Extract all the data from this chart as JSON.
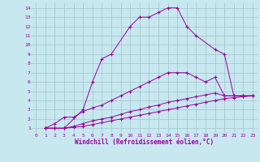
{
  "background_color": "#c8e8f0",
  "grid_color": "#a8c8d0",
  "line_color": "#990099",
  "marker": "+",
  "xlabel": "Windchill (Refroidissement éolien,°C)",
  "xlim": [
    -0.5,
    23.5
  ],
  "ylim": [
    0.5,
    14.5
  ],
  "xticks": [
    0,
    1,
    2,
    3,
    4,
    5,
    6,
    7,
    8,
    9,
    10,
    11,
    12,
    13,
    14,
    15,
    16,
    17,
    18,
    19,
    20,
    21,
    22,
    23
  ],
  "yticks": [
    1,
    2,
    3,
    4,
    5,
    6,
    7,
    8,
    9,
    10,
    11,
    12,
    13,
    14
  ],
  "line1_x": [
    1,
    2,
    3,
    5,
    6,
    7,
    8,
    10,
    11,
    12,
    13,
    14,
    15,
    16,
    17,
    19,
    20,
    21,
    22,
    23
  ],
  "line1_y": [
    1,
    1,
    1,
    3,
    6,
    8.5,
    9,
    12,
    13,
    13,
    13.5,
    14,
    14,
    12,
    11,
    9.5,
    9,
    4.5,
    4.5,
    4.5
  ],
  "line2_x": [
    1,
    2,
    3,
    4,
    5,
    6,
    7,
    8,
    9,
    10,
    11,
    12,
    13,
    14,
    15,
    16,
    17,
    18,
    19,
    20,
    21,
    22,
    23
  ],
  "line2_y": [
    1,
    1.5,
    2.2,
    2.2,
    2.8,
    3.2,
    3.5,
    4.0,
    4.5,
    5.0,
    5.5,
    6.0,
    6.5,
    7.0,
    7.0,
    7.0,
    6.5,
    6.0,
    6.5,
    4.5,
    4.5,
    4.5,
    4.5
  ],
  "line3_x": [
    1,
    2,
    3,
    4,
    5,
    6,
    7,
    8,
    9,
    10,
    11,
    12,
    13,
    14,
    15,
    16,
    17,
    18,
    19,
    20,
    21,
    22,
    23
  ],
  "line3_y": [
    1,
    1,
    1,
    1.2,
    1.5,
    1.8,
    2.0,
    2.2,
    2.5,
    2.8,
    3.0,
    3.3,
    3.5,
    3.8,
    4.0,
    4.2,
    4.4,
    4.6,
    4.8,
    4.5,
    4.5,
    4.5,
    4.5
  ],
  "line4_x": [
    1,
    2,
    3,
    4,
    5,
    6,
    7,
    8,
    9,
    10,
    11,
    12,
    13,
    14,
    15,
    16,
    17,
    18,
    19,
    20,
    21,
    22,
    23
  ],
  "line4_y": [
    1,
    1,
    1,
    1.1,
    1.2,
    1.4,
    1.6,
    1.8,
    2.0,
    2.2,
    2.4,
    2.6,
    2.8,
    3.0,
    3.2,
    3.4,
    3.6,
    3.8,
    4.0,
    4.2,
    4.3,
    4.4,
    4.5
  ],
  "tick_fontsize": 4.5,
  "label_fontsize": 5.5,
  "marker_size": 2.5,
  "line_width": 0.7
}
